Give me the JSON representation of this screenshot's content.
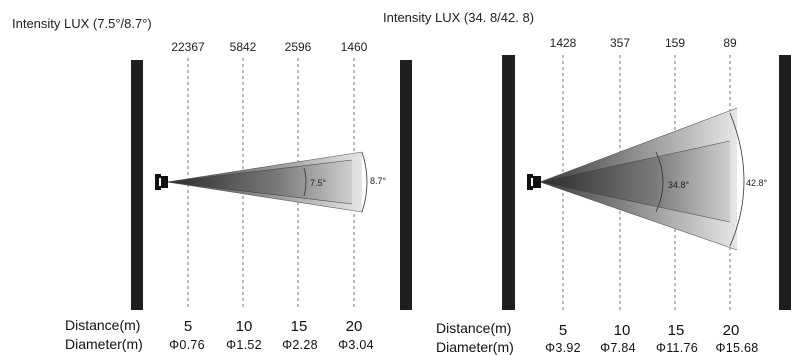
{
  "diagrams": [
    {
      "title": "Intensity LUX (7.5°/8.7°)",
      "lux": [
        "22367",
        "5842",
        "2596",
        "1460"
      ],
      "inner_angle": "7.5°",
      "outer_angle": "8.7°",
      "distance_label": "Distance(m)",
      "diameter_label": "Diameter(m)",
      "distances": [
        "5",
        "10",
        "15",
        "20"
      ],
      "diameters": [
        "Φ0.76",
        "Φ1.52",
        "Φ2.28",
        "Φ3.04"
      ]
    },
    {
      "title": "Intensity LUX (34. 8/42. 8)",
      "lux": [
        "1428",
        "357",
        "159",
        "89"
      ],
      "inner_angle": "34.8°",
      "outer_angle": "42.8°",
      "distance_label": "Distance(m)",
      "diameter_label": "Diameter(m)",
      "distances": [
        "5",
        "10",
        "15",
        "20"
      ],
      "diameters": [
        "Φ3.92",
        "Φ7.84",
        "Φ11.76",
        "Φ15.68"
      ]
    }
  ]
}
